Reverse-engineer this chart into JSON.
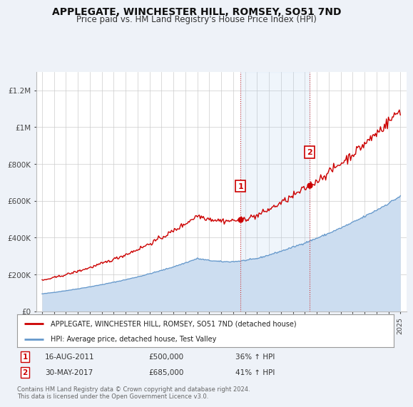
{
  "title": "APPLEGATE, WINCHESTER HILL, ROMSEY, SO51 7ND",
  "subtitle": "Price paid vs. HM Land Registry's House Price Index (HPI)",
  "title_fontsize": 10,
  "subtitle_fontsize": 8.5,
  "background_color": "#eef2f8",
  "plot_bg_color": "#ffffff",
  "red_line_color": "#cc0000",
  "blue_line_color": "#6699cc",
  "blue_fill_color": "#ccddf0",
  "marker1_date_x": 2011.62,
  "marker2_date_x": 2017.41,
  "marker1_price": 500000,
  "marker2_price": 685000,
  "ylim": [
    0,
    1300000
  ],
  "xlim_start": 1994.5,
  "xlim_end": 2025.5,
  "ytick_labels": [
    "£0",
    "£200K",
    "£400K",
    "£600K",
    "£800K",
    "£1M",
    "£1.2M"
  ],
  "ytick_values": [
    0,
    200000,
    400000,
    600000,
    800000,
    1000000,
    1200000
  ],
  "xtick_years": [
    1995,
    1996,
    1997,
    1998,
    1999,
    2000,
    2001,
    2002,
    2003,
    2004,
    2005,
    2006,
    2007,
    2008,
    2009,
    2010,
    2011,
    2012,
    2013,
    2014,
    2015,
    2016,
    2017,
    2018,
    2019,
    2020,
    2021,
    2022,
    2023,
    2024,
    2025
  ],
  "legend_label_red": "APPLEGATE, WINCHESTER HILL, ROMSEY, SO51 7ND (detached house)",
  "legend_label_blue": "HPI: Average price, detached house, Test Valley",
  "annotation1_label": "1",
  "annotation2_label": "2",
  "sale1_date": "16-AUG-2011",
  "sale1_price": "£500,000",
  "sale1_hpi": "36% ↑ HPI",
  "sale2_date": "30-MAY-2017",
  "sale2_price": "£685,000",
  "sale2_hpi": "41% ↑ HPI",
  "footer": "Contains HM Land Registry data © Crown copyright and database right 2024.\nThis data is licensed under the Open Government Licence v3.0."
}
